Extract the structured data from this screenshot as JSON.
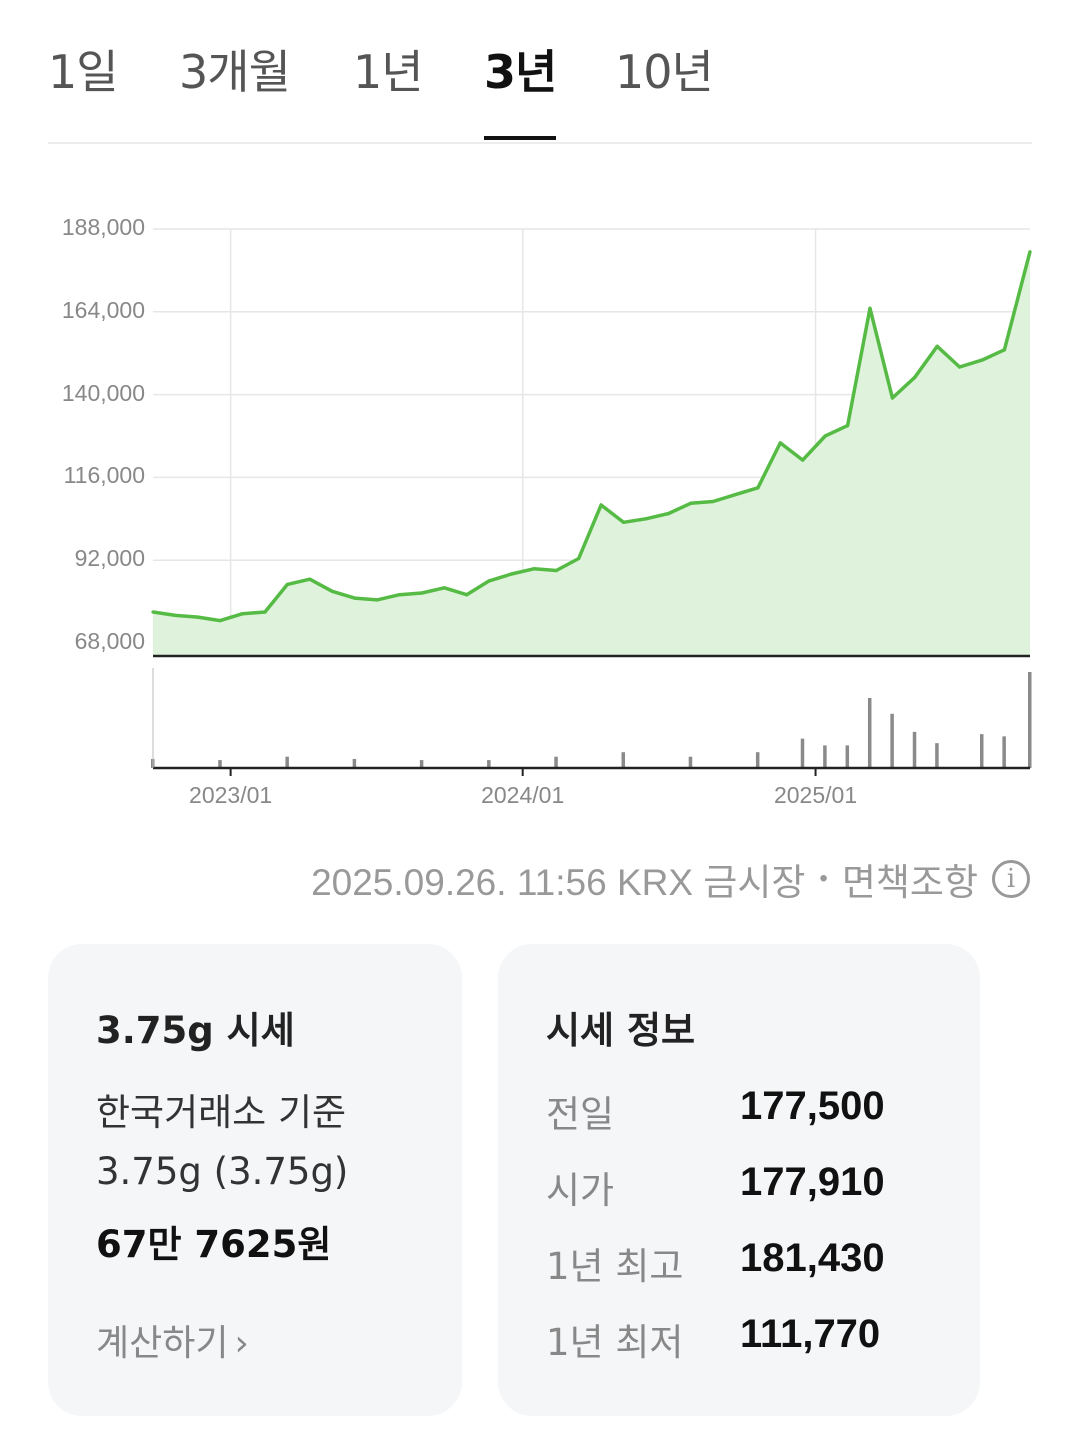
{
  "tabs": [
    {
      "label": "1일",
      "active": false
    },
    {
      "label": "3개월",
      "active": false
    },
    {
      "label": "1년",
      "active": false
    },
    {
      "label": "3년",
      "active": true
    },
    {
      "label": "10년",
      "active": false
    }
  ],
  "chart_data": {
    "type": "area",
    "y_tick_labels": [
      "188,000",
      "164,000",
      "140,000",
      "116,000",
      "92,000",
      "68,000"
    ],
    "y_ticks": [
      188000,
      164000,
      140000,
      116000,
      92000,
      68000
    ],
    "ylim": [
      68000,
      188000
    ],
    "x_tick_labels": [
      "2023/01",
      "2024/01",
      "2025/01"
    ],
    "x_ticks": [
      "2023-01-01",
      "2024-01-01",
      "2025-01-01"
    ],
    "xlim": [
      "2022-09-26",
      "2025-09-26"
    ],
    "grid": true,
    "line_color": "#55bb44",
    "fill_color": "#dff3dc",
    "price": {
      "x": [
        "2022-09-26",
        "2022-10-24",
        "2022-11-21",
        "2022-12-19",
        "2023-01-16",
        "2023-02-13",
        "2023-03-13",
        "2023-04-10",
        "2023-05-08",
        "2023-06-05",
        "2023-07-03",
        "2023-07-31",
        "2023-08-28",
        "2023-09-25",
        "2023-10-23",
        "2023-11-20",
        "2023-12-18",
        "2024-01-15",
        "2024-02-12",
        "2024-03-11",
        "2024-04-08",
        "2024-05-06",
        "2024-06-03",
        "2024-07-01",
        "2024-07-29",
        "2024-08-26",
        "2024-09-23",
        "2024-10-21",
        "2024-11-18",
        "2024-12-16",
        "2025-01-13",
        "2025-02-10",
        "2025-03-10",
        "2025-04-07",
        "2025-05-05",
        "2025-06-02",
        "2025-06-30",
        "2025-07-28",
        "2025-08-25",
        "2025-09-26"
      ],
      "y": [
        77000,
        76000,
        75500,
        74500,
        76500,
        77000,
        85000,
        86500,
        83000,
        81000,
        80500,
        82000,
        82500,
        84000,
        82000,
        86000,
        88000,
        89500,
        89000,
        92500,
        108000,
        103000,
        104000,
        105500,
        108500,
        109000,
        111000,
        113000,
        126000,
        121000,
        128000,
        131000,
        165000,
        139000,
        145000,
        154000,
        148000,
        150000,
        153000,
        181430
      ]
    },
    "volume": {
      "x": [
        "2022-09-26",
        "2022-12-19",
        "2023-03-13",
        "2023-06-05",
        "2023-08-28",
        "2023-11-20",
        "2024-02-12",
        "2024-05-06",
        "2024-07-29",
        "2024-10-21",
        "2024-12-16",
        "2025-01-13",
        "2025-02-10",
        "2025-03-10",
        "2025-04-07",
        "2025-05-05",
        "2025-06-02",
        "2025-07-28",
        "2025-08-25",
        "2025-09-26"
      ],
      "y": [
        8,
        7,
        10,
        8,
        7,
        7,
        10,
        14,
        10,
        14,
        26,
        20,
        20,
        62,
        48,
        32,
        22,
        30,
        28,
        85
      ]
    }
  },
  "meta": {
    "timestamp": "2025.09.26. 11:56 KRX 금시장",
    "separator": "•",
    "disclaimer": "면책조항",
    "info_icon": "info-icon",
    "info_glyph": "i"
  },
  "price_card": {
    "title": "3.75g 시세",
    "basis": "한국거래소 기준",
    "weight": "3.75g (3.75g)",
    "price": "67만 7625원",
    "calc_link": "계산하기",
    "calc_chevron": "›"
  },
  "info_card": {
    "title": "시세 정보",
    "rows": [
      {
        "label": "전일",
        "value": "177,500"
      },
      {
        "label": "시가",
        "value": "177,910"
      },
      {
        "label": "1년 최고",
        "value": "181,430"
      },
      {
        "label": "1년 최저",
        "value": "111,770"
      }
    ]
  }
}
